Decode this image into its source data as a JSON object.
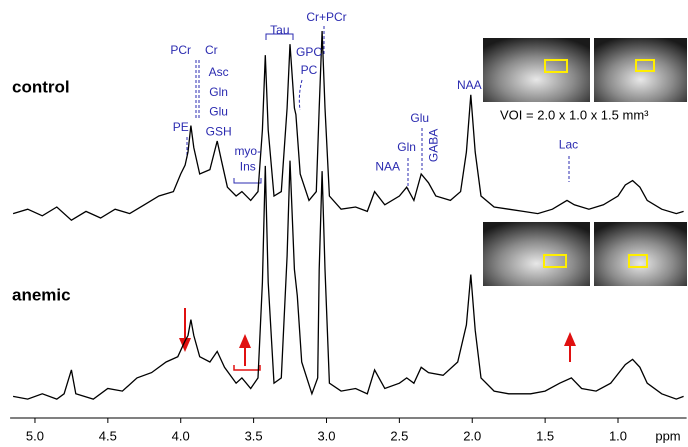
{
  "voi_label": "VOI = 2.0 x 1.0 x 1.5 mm³",
  "chart_data": [
    {
      "type": "line",
      "title": "control",
      "color": "#000000",
      "xlim": [
        5.15,
        0.55
      ],
      "ylim": [
        0,
        100
      ],
      "x": [
        5.15,
        5.05,
        4.95,
        4.85,
        4.75,
        4.65,
        4.55,
        4.45,
        4.35,
        4.25,
        4.15,
        4.05,
        4.0,
        3.97,
        3.95,
        3.93,
        3.91,
        3.87,
        3.8,
        3.75,
        3.72,
        3.68,
        3.62,
        3.58,
        3.52,
        3.47,
        3.44,
        3.42,
        3.4,
        3.36,
        3.31,
        3.27,
        3.25,
        3.22,
        3.21,
        3.18,
        3.12,
        3.07,
        3.05,
        3.03,
        3.01,
        2.98,
        2.9,
        2.8,
        2.72,
        2.67,
        2.6,
        2.5,
        2.45,
        2.4,
        2.35,
        2.3,
        2.25,
        2.15,
        2.08,
        2.04,
        2.01,
        1.98,
        1.94,
        1.85,
        1.75,
        1.65,
        1.55,
        1.45,
        1.35,
        1.3,
        1.2,
        1.1,
        1.0,
        0.95,
        0.9,
        0.85,
        0.8,
        0.7,
        0.6,
        0.55
      ],
      "values": [
        12,
        14,
        11,
        15,
        9,
        13,
        10,
        14,
        12,
        16,
        20,
        22,
        30,
        34,
        40,
        52,
        42,
        30,
        32,
        45,
        36,
        24,
        20,
        22,
        18,
        22,
        50,
        84,
        50,
        20,
        22,
        60,
        89,
        60,
        57,
        30,
        18,
        22,
        60,
        95,
        60,
        20,
        14,
        15,
        13,
        22,
        16,
        20,
        24,
        18,
        30,
        26,
        20,
        18,
        22,
        40,
        66,
        40,
        20,
        15,
        14,
        13,
        12,
        14,
        18,
        16,
        14,
        16,
        20,
        25,
        27,
        24,
        18,
        14,
        12,
        13
      ],
      "annotation_color": "#2b2bb0",
      "annotations": [
        {
          "text": "PCr",
          "x": 4.0,
          "y": 86
        },
        {
          "text": "Cr",
          "x": 3.79,
          "y": 86
        },
        {
          "text": "Asc",
          "x": 3.74,
          "y": 76
        },
        {
          "text": "Gln",
          "x": 3.74,
          "y": 67
        },
        {
          "text": "Glu",
          "x": 3.74,
          "y": 58
        },
        {
          "text": "GSH",
          "x": 3.74,
          "y": 49
        },
        {
          "text": "PE",
          "x": 4.0,
          "y": 51
        },
        {
          "text": "myo-",
          "x": 3.54,
          "y": 40
        },
        {
          "text": "Ins",
          "x": 3.54,
          "y": 33
        },
        {
          "text": "Tau",
          "x": 3.32,
          "y": 95
        },
        {
          "text": "GPC",
          "x": 3.12,
          "y": 85
        },
        {
          "text": "PC",
          "x": 3.12,
          "y": 77
        },
        {
          "text": "Cr+PCr",
          "x": 3.0,
          "y": 101
        },
        {
          "text": "NAA",
          "x": 2.58,
          "y": 33
        },
        {
          "text": "Gln",
          "x": 2.45,
          "y": 42
        },
        {
          "text": "Glu",
          "x": 2.36,
          "y": 55
        },
        {
          "text": "GABA",
          "x": 2.26,
          "y": 43,
          "vertical": true
        },
        {
          "text": "NAA",
          "x": 2.02,
          "y": 70
        },
        {
          "text": "Lac",
          "x": 1.34,
          "y": 43
        }
      ]
    },
    {
      "type": "line",
      "title": "anemic",
      "color": "#000000",
      "xlim": [
        5.15,
        0.55
      ],
      "ylim": [
        0,
        100
      ],
      "x_label": "ppm",
      "xticks": [
        {
          "value": 5,
          "label": "5.0"
        },
        4.5,
        {
          "value": 4,
          "label": "4.0"
        },
        3.5,
        {
          "value": 3,
          "label": "3.0"
        },
        2.5,
        {
          "value": 2,
          "label": "2.0"
        },
        1.5,
        {
          "value": 1,
          "label": "1.0"
        }
      ],
      "x": [
        5.15,
        5.05,
        4.95,
        4.85,
        4.8,
        4.75,
        4.72,
        4.6,
        4.5,
        4.4,
        4.3,
        4.2,
        4.1,
        4.02,
        3.97,
        3.95,
        3.93,
        3.91,
        3.87,
        3.8,
        3.75,
        3.7,
        3.62,
        3.58,
        3.52,
        3.47,
        3.44,
        3.42,
        3.4,
        3.36,
        3.31,
        3.27,
        3.25,
        3.22,
        3.2,
        3.17,
        3.1,
        3.06,
        3.05,
        3.03,
        3.01,
        2.98,
        2.9,
        2.8,
        2.72,
        2.67,
        2.6,
        2.5,
        2.45,
        2.4,
        2.35,
        2.3,
        2.2,
        2.1,
        2.04,
        2.01,
        1.98,
        1.94,
        1.85,
        1.75,
        1.6,
        1.5,
        1.4,
        1.32,
        1.25,
        1.15,
        1.05,
        0.95,
        0.9,
        0.85,
        0.8,
        0.7,
        0.6,
        0.55
      ],
      "values": [
        7,
        6,
        8,
        6,
        8,
        17,
        8,
        6,
        10,
        9,
        14,
        16,
        20,
        22,
        28,
        30,
        36,
        30,
        22,
        20,
        24,
        18,
        12,
        14,
        10,
        14,
        50,
        94,
        50,
        12,
        14,
        60,
        96,
        55,
        45,
        20,
        8,
        14,
        55,
        92,
        55,
        12,
        9,
        10,
        8,
        17,
        10,
        12,
        14,
        12,
        18,
        16,
        15,
        20,
        34,
        53,
        32,
        14,
        9,
        8,
        8,
        9,
        12,
        14,
        10,
        9,
        12,
        19,
        21,
        18,
        12,
        8,
        6,
        7
      ]
    }
  ]
}
